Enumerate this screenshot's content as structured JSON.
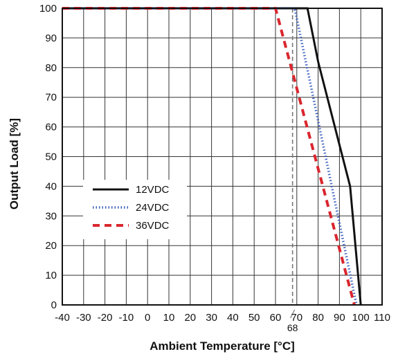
{
  "chart_data": {
    "type": "line",
    "title": "",
    "xlabel": "Ambient Temperature [°C]",
    "ylabel": "Output Load [%]",
    "xlim": [
      -40,
      110
    ],
    "ylim": [
      0,
      100
    ],
    "x_ticks": [
      -40,
      -30,
      -20,
      -10,
      0,
      10,
      20,
      30,
      40,
      50,
      60,
      70,
      80,
      90,
      100,
      110
    ],
    "y_ticks": [
      0,
      10,
      20,
      30,
      40,
      50,
      60,
      70,
      80,
      90,
      100
    ],
    "grid": true,
    "legend_position": "left-middle",
    "series": [
      {
        "name": "12VDC",
        "color": "#111111",
        "style": "solid",
        "x": [
          -40,
          75,
          80,
          90,
          95,
          100
        ],
        "y": [
          100,
          100,
          82,
          54,
          40,
          0
        ]
      },
      {
        "name": "24VDC",
        "color": "#3a5fbf",
        "style": "dotted",
        "x": [
          -40,
          69,
          98
        ],
        "y": [
          100,
          100,
          0
        ]
      },
      {
        "name": "36VDC",
        "color": "#d9262e",
        "style": "dashed",
        "x": [
          -40,
          60,
          97
        ],
        "y": [
          100,
          100,
          0
        ]
      }
    ],
    "annotations": [
      {
        "type": "vline",
        "x": 68,
        "label": "68",
        "style": "dashed",
        "color": "#777777"
      }
    ]
  }
}
